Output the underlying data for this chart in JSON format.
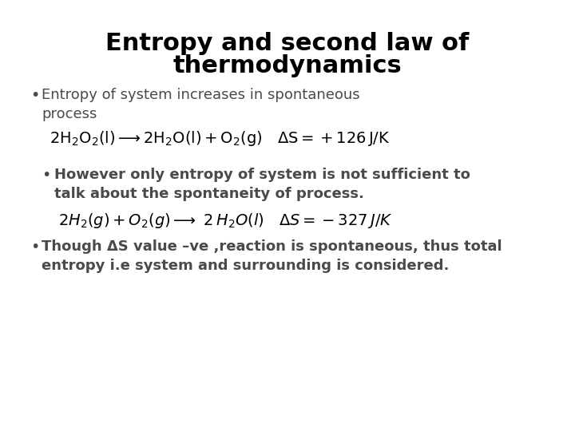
{
  "title_line1": "Entropy and second law of",
  "title_line2": "thermodynamics",
  "title_fontsize": 22,
  "title_color": "#000000",
  "bullet_color": "#4a4a4a",
  "bullet_fontsize": 13,
  "equation_fontsize": 13,
  "background_color": "#ffffff",
  "bullet1_line1": "Entropy of system increases in spontaneous",
  "bullet1_line2": "process",
  "bullet2_line1": "However only entropy of system is not sufficient to",
  "bullet2_line2": "talk about the spontaneity of process.",
  "bullet3_line1": "Though ΔS value –ve ,reaction is spontaneous, thus total",
  "bullet3_line2": "entropy i.e system and surrounding is considered."
}
